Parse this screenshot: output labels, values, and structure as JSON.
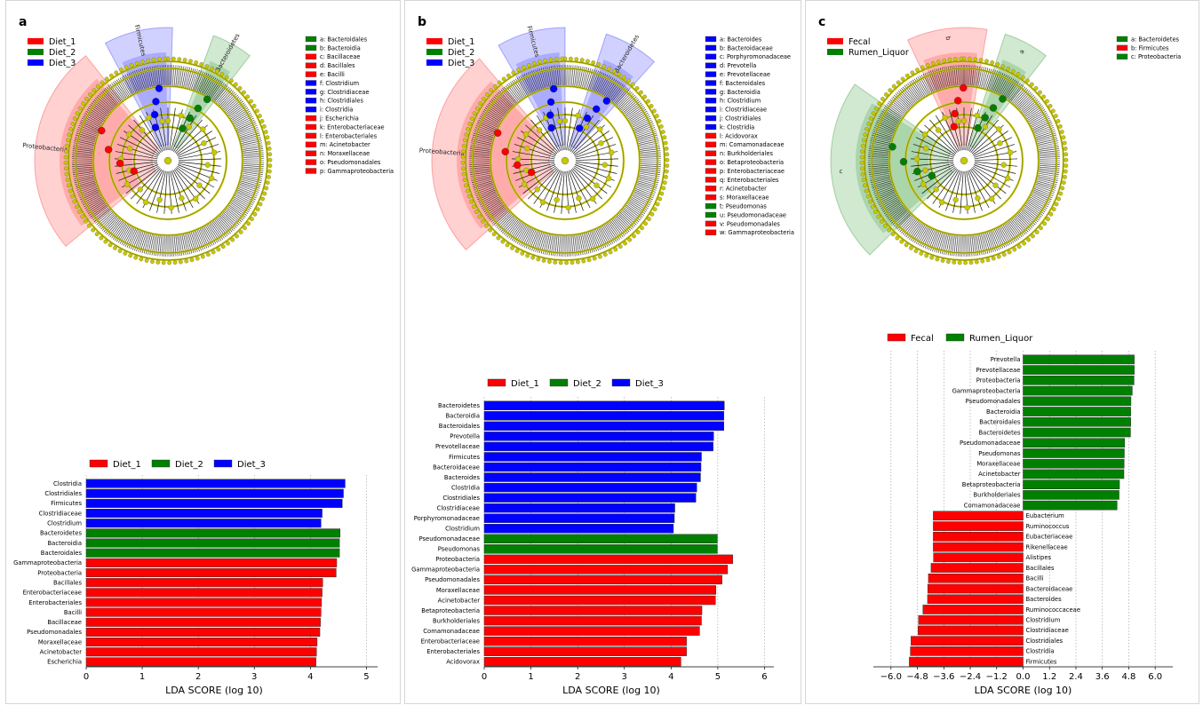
{
  "colors": {
    "red": "#ff0000",
    "green": "#008000",
    "blue": "#0000ff",
    "node_yellow": "#c8c800"
  },
  "panels": [
    {
      "label": "a",
      "clado": {
        "legend": [
          "Diet_1",
          "Diet_2",
          "Diet_3"
        ],
        "legend_colors": [
          "red",
          "green",
          "blue"
        ],
        "sectors": [
          {
            "name": "Proteobacteria",
            "color": "red",
            "start": 230,
            "end": 322
          },
          {
            "name": "Firmicutes",
            "color": "blue",
            "start": 332,
            "end": 362
          },
          {
            "name": "Bacteroidetes",
            "color": "green",
            "start": 20,
            "end": 38
          }
        ],
        "key": [
          {
            "t": "a: Bacteroidales",
            "c": "green"
          },
          {
            "t": "b: Bacteroidia",
            "c": "green"
          },
          {
            "t": "c: Bacillaceae",
            "c": "red"
          },
          {
            "t": "d: Bacillales",
            "c": "red"
          },
          {
            "t": "e: Bacilli",
            "c": "red"
          },
          {
            "t": "f: Clostridium",
            "c": "blue"
          },
          {
            "t": "g: Clostridiaceae",
            "c": "blue"
          },
          {
            "t": "h: Clostridiales",
            "c": "blue"
          },
          {
            "t": "i: Clostridia",
            "c": "blue"
          },
          {
            "t": "j: Escherichia",
            "c": "red"
          },
          {
            "t": "k: Enterobacteriaceae",
            "c": "red"
          },
          {
            "t": "l: Enterobacteriales",
            "c": "red"
          },
          {
            "t": "m: Acinetobacter",
            "c": "red"
          },
          {
            "t": "n: Moraxellaceae",
            "c": "red"
          },
          {
            "t": "o: Pseudomonadales",
            "c": "red"
          },
          {
            "t": "p: Gammaproteobacteria",
            "c": "red"
          }
        ]
      }
    },
    {
      "label": "b",
      "clado": {
        "legend": [
          "Diet_1",
          "Diet_2",
          "Diet_3"
        ],
        "legend_colors": [
          "red",
          "green",
          "blue"
        ],
        "sectors": [
          {
            "name": "Proteobacteria",
            "color": "red",
            "start": 228,
            "end": 320
          },
          {
            "name": "Firmicutes",
            "color": "blue",
            "start": 330,
            "end": 360
          },
          {
            "name": "Bacteroidetes",
            "color": "blue",
            "start": 18,
            "end": 42
          }
        ],
        "key": [
          {
            "t": "a: Bacteroides",
            "c": "blue"
          },
          {
            "t": "b: Bacteroidaceae",
            "c": "blue"
          },
          {
            "t": "c: Porphyromonadaceae",
            "c": "blue"
          },
          {
            "t": "d: Prevotella",
            "c": "blue"
          },
          {
            "t": "e: Prevotellaceae",
            "c": "blue"
          },
          {
            "t": "f: Bacteroidales",
            "c": "blue"
          },
          {
            "t": "g: Bacteroidia",
            "c": "blue"
          },
          {
            "t": "h: Clostridium",
            "c": "blue"
          },
          {
            "t": "i: Clostridiaceae",
            "c": "blue"
          },
          {
            "t": "j: Clostridiales",
            "c": "blue"
          },
          {
            "t": "k: Clostridia",
            "c": "blue"
          },
          {
            "t": "l: Acidovorax",
            "c": "red"
          },
          {
            "t": "m: Comamonadaceae",
            "c": "red"
          },
          {
            "t": "n: Burkholderiales",
            "c": "red"
          },
          {
            "t": "o: Betaproteobacteria",
            "c": "red"
          },
          {
            "t": "p: Enterobacteriaceae",
            "c": "red"
          },
          {
            "t": "q: Enterobacteriales",
            "c": "red"
          },
          {
            "t": "r: Acinetobacter",
            "c": "red"
          },
          {
            "t": "s: Moraxellaceae",
            "c": "red"
          },
          {
            "t": "t: Pseudomonas",
            "c": "green"
          },
          {
            "t": "u: Pseudomonadaceae",
            "c": "green"
          },
          {
            "t": "v: Pseudomonadales",
            "c": "red"
          },
          {
            "t": "w: Gammaproteobacteria",
            "c": "red"
          }
        ]
      }
    },
    {
      "label": "c",
      "clado": {
        "legend": [
          "Fecal",
          "Rumen_Liquor"
        ],
        "legend_colors": [
          "red",
          "green"
        ],
        "sectors": [
          {
            "name": "c",
            "color": "green",
            "start": 225,
            "end": 305
          },
          {
            "name": "b",
            "color": "red",
            "start": 335,
            "end": 370
          },
          {
            "name": "a",
            "color": "green",
            "start": 18,
            "end": 38
          }
        ],
        "key": [
          {
            "t": "a: Bacteroidetes",
            "c": "green"
          },
          {
            "t": "b: Firmicutes",
            "c": "red"
          },
          {
            "t": "c: Proteobacteria",
            "c": "green"
          }
        ]
      }
    }
  ],
  "chart_data": [
    {
      "type": "bar",
      "orientation": "horizontal",
      "legend": [
        "Diet_1",
        "Diet_2",
        "Diet_3"
      ],
      "xlabel": "LDA SCORE (log 10)",
      "xlim": [
        0,
        5.2
      ],
      "xticks": [
        "0",
        "1",
        "2",
        "3",
        "4",
        "5"
      ],
      "categories": [
        "Clostridia",
        "Clostridiales",
        "Firmicutes",
        "Clostridiaceae",
        "Clostridium",
        "Bacteroidetes",
        "Bacteroidia",
        "Bacteroidales",
        "Gammaproteobacteria",
        "Proteobacteria",
        "Bacillales",
        "Enterobacteriaceae",
        "Enterobacteriales",
        "Bacilli",
        "Bacillaceae",
        "Pseudomonadales",
        "Moraxellaceae",
        "Acinetobacter",
        "Escherichia"
      ],
      "values": [
        4.62,
        4.59,
        4.57,
        4.21,
        4.19,
        4.53,
        4.52,
        4.52,
        4.47,
        4.46,
        4.22,
        4.21,
        4.2,
        4.19,
        4.18,
        4.17,
        4.12,
        4.11,
        4.1
      ],
      "groups": [
        "Diet_3",
        "Diet_3",
        "Diet_3",
        "Diet_3",
        "Diet_3",
        "Diet_2",
        "Diet_2",
        "Diet_2",
        "Diet_1",
        "Diet_1",
        "Diet_1",
        "Diet_1",
        "Diet_1",
        "Diet_1",
        "Diet_1",
        "Diet_1",
        "Diet_1",
        "Diet_1",
        "Diet_1"
      ]
    },
    {
      "type": "bar",
      "orientation": "horizontal",
      "legend": [
        "Diet_1",
        "Diet_2",
        "Diet_3"
      ],
      "xlabel": "LDA SCORE (log 10)",
      "xlim": [
        0,
        6.2
      ],
      "xticks": [
        "0",
        "1",
        "2",
        "3",
        "4",
        "5",
        "6"
      ],
      "categories": [
        "Bacteroidetes",
        "Bacteroidia",
        "Bacteroidales",
        "Prevotella",
        "Prevotellaceae",
        "Firmicutes",
        "Bacteroidaceae",
        "Bacteroides",
        "Clostridia",
        "Clostridiales",
        "Clostridiaceae",
        "Porphyromonadaceae",
        "Clostridium",
        "Pseudomonadaceae",
        "Pseudomonas",
        "Proteobacteria",
        "Gammaproteobacteria",
        "Pseudomonadales",
        "Moraxellaceae",
        "Acinetobacter",
        "Betaproteobacteria",
        "Burkholderiales",
        "Comamonadaceae",
        "Enterobacteriaceae",
        "Enterobacteriales",
        "Acidovorax"
      ],
      "values": [
        5.14,
        5.13,
        5.13,
        4.91,
        4.9,
        4.65,
        4.64,
        4.63,
        4.55,
        4.53,
        4.08,
        4.07,
        4.05,
        4.99,
        4.99,
        5.32,
        5.21,
        5.09,
        4.96,
        4.95,
        4.66,
        4.65,
        4.61,
        4.33,
        4.33,
        4.21
      ],
      "groups": [
        "Diet_3",
        "Diet_3",
        "Diet_3",
        "Diet_3",
        "Diet_3",
        "Diet_3",
        "Diet_3",
        "Diet_3",
        "Diet_3",
        "Diet_3",
        "Diet_3",
        "Diet_3",
        "Diet_3",
        "Diet_2",
        "Diet_2",
        "Diet_1",
        "Diet_1",
        "Diet_1",
        "Diet_1",
        "Diet_1",
        "Diet_1",
        "Diet_1",
        "Diet_1",
        "Diet_1",
        "Diet_1",
        "Diet_1"
      ]
    },
    {
      "type": "bar",
      "orientation": "horizontal",
      "legend": [
        "Fecal",
        "Rumen_Liquor"
      ],
      "xlabel": "LDA SCORE (log 10)",
      "xlim": [
        -6.8,
        6.8
      ],
      "xticks": [
        "−6.0",
        "−4.8",
        "−3.6",
        "−2.4",
        "−1.2",
        "0.0",
        "1.2",
        "2.4",
        "3.6",
        "4.8",
        "6.0"
      ],
      "categories": [
        "Prevotella",
        "Prevotellaceae",
        "Proteobacteria",
        "Gammaproteobacteria",
        "Pseudomonadales",
        "Bacteroidia",
        "Bacteroidales",
        "Bacteroidetes",
        "Pseudomonadaceae",
        "Pseudomonas",
        "Moraxellaceae",
        "Acinetobacter",
        "Betaproteobacteria",
        "Burkholderiales",
        "Comamonadaceae",
        "Eubacterium",
        "Ruminococcus",
        "Eubacteriaceae",
        "Rikenellaceae",
        "Alistipes",
        "Bacillales",
        "Bacilli",
        "Bacteroidaceae",
        "Bacteroides",
        "Ruminococcaceae",
        "Clostridium",
        "Clostridiaceae",
        "Clostridiales",
        "Clostridia",
        "Firmicutes"
      ],
      "values": [
        5.05,
        5.05,
        5.04,
        4.96,
        4.9,
        4.89,
        4.89,
        4.88,
        4.61,
        4.6,
        4.59,
        4.58,
        4.38,
        4.36,
        4.27,
        -4.08,
        -4.08,
        -4.08,
        -4.08,
        -4.07,
        -4.18,
        -4.3,
        -4.33,
        -4.34,
        -4.55,
        -4.75,
        -4.77,
        -5.09,
        -5.12,
        -5.17
      ],
      "groups": [
        "Rumen_Liquor",
        "Rumen_Liquor",
        "Rumen_Liquor",
        "Rumen_Liquor",
        "Rumen_Liquor",
        "Rumen_Liquor",
        "Rumen_Liquor",
        "Rumen_Liquor",
        "Rumen_Liquor",
        "Rumen_Liquor",
        "Rumen_Liquor",
        "Rumen_Liquor",
        "Rumen_Liquor",
        "Rumen_Liquor",
        "Rumen_Liquor",
        "Fecal",
        "Fecal",
        "Fecal",
        "Fecal",
        "Fecal",
        "Fecal",
        "Fecal",
        "Fecal",
        "Fecal",
        "Fecal",
        "Fecal",
        "Fecal",
        "Fecal",
        "Fecal",
        "Fecal"
      ]
    }
  ]
}
